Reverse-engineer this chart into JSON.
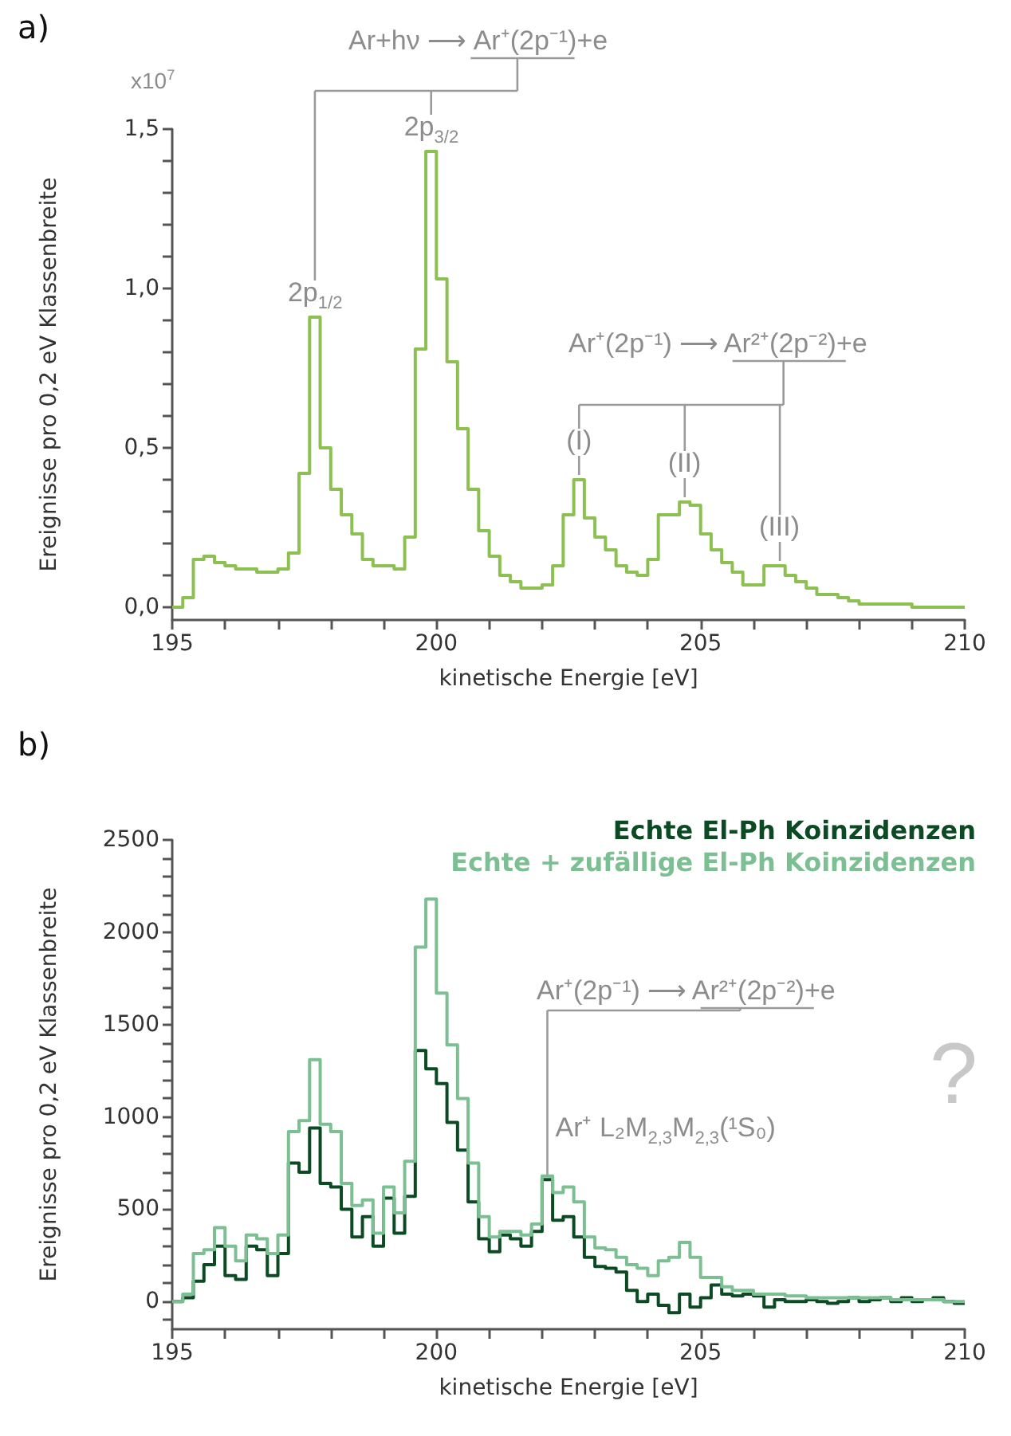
{
  "chart_data": [
    {
      "type": "histogram",
      "title": "a)",
      "xlabel": "kinetische Energie [eV]",
      "ylabel": "Ereignisse pro 0,2 eV Klassenbreite",
      "bins": [
        195,
        195.2,
        195.4,
        195.6,
        195.8,
        196,
        196.2,
        196.4,
        196.6,
        196.8,
        197,
        197.2,
        197.4,
        197.6,
        197.8,
        198,
        198.2,
        198.4,
        198.6,
        198.8,
        199,
        199.2,
        199.4,
        199.6,
        199.8,
        200,
        200.2,
        200.4,
        200.6,
        200.8,
        201,
        201.2,
        201.4,
        201.6,
        201.8,
        202,
        202.2,
        202.4,
        202.6,
        202.8,
        203,
        203.2,
        203.4,
        203.6,
        203.8,
        204,
        204.2,
        204.4,
        204.6,
        204.8,
        205,
        205.2,
        205.4,
        205.6,
        205.8,
        206,
        206.2,
        206.4,
        206.6,
        206.8,
        207,
        207.2,
        207.4,
        207.6,
        207.8,
        208,
        208.2,
        208.4,
        208.6,
        208.8,
        209,
        209.2,
        209.4,
        209.6,
        209.8,
        210
      ],
      "values": [
        0.0,
        0.03,
        0.15,
        0.16,
        0.14,
        0.13,
        0.12,
        0.12,
        0.11,
        0.11,
        0.12,
        0.17,
        0.42,
        0.91,
        0.5,
        0.37,
        0.29,
        0.23,
        0.15,
        0.13,
        0.13,
        0.12,
        0.22,
        0.81,
        1.43,
        1.03,
        0.77,
        0.56,
        0.37,
        0.24,
        0.16,
        0.1,
        0.08,
        0.06,
        0.06,
        0.07,
        0.13,
        0.29,
        0.4,
        0.28,
        0.22,
        0.18,
        0.13,
        0.11,
        0.1,
        0.15,
        0.29,
        0.29,
        0.33,
        0.32,
        0.23,
        0.18,
        0.14,
        0.11,
        0.07,
        0.07,
        0.13,
        0.13,
        0.1,
        0.08,
        0.06,
        0.04,
        0.04,
        0.03,
        0.02,
        0.01,
        0.01,
        0.01,
        0.01,
        0.01,
        0.0,
        0.0,
        0.0,
        0.0,
        0.0
      ],
      "color": "#8cc152",
      "xlim": [
        195,
        210
      ],
      "xticks": [
        195,
        {
          "value": 196,
          "label": null
        },
        {
          "value": 197,
          "label": null
        },
        {
          "value": 198,
          "label": null
        },
        {
          "value": 199,
          "label": null
        },
        200,
        {
          "value": 201,
          "label": null
        },
        {
          "value": 202,
          "label": null
        },
        {
          "value": 203,
          "label": null
        },
        {
          "value": 204,
          "label": null
        },
        205,
        {
          "value": 206,
          "label": null
        },
        {
          "value": 207,
          "label": null
        },
        {
          "value": 208,
          "label": null
        },
        {
          "value": 209,
          "label": null
        },
        210
      ],
      "ylim": [
        -0.04,
        1.5
      ],
      "yticks": [
        {
          "value": 0,
          "label": "0,0"
        },
        {
          "value": 0.1,
          "label": null
        },
        {
          "value": 0.2,
          "label": null
        },
        {
          "value": 0.3,
          "label": null
        },
        {
          "value": 0.4,
          "label": null
        },
        {
          "value": 0.5,
          "label": "0,5"
        },
        {
          "value": 0.6,
          "label": null
        },
        {
          "value": 0.7,
          "label": null
        },
        {
          "value": 0.8,
          "label": null
        },
        {
          "value": 0.9,
          "label": null
        },
        {
          "value": 1,
          "label": "1,0"
        },
        {
          "value": 1.1,
          "label": null
        },
        {
          "value": 1.2,
          "label": null
        },
        {
          "value": 1.3,
          "label": null
        },
        {
          "value": 1.4,
          "label": null
        },
        {
          "value": 1.5,
          "label": "1,5"
        }
      ],
      "annotations": [
        "Ar+hν ⟶ Ar⁺(2p⁻¹)+e",
        {
          "text": "2p$_{1/2}$",
          "x": 197.7,
          "y": 0.91
        },
        {
          "text": "2p$_{3/2}$",
          "x": 199.9,
          "y": 1.43
        },
        "Ar⁺(2p⁻¹) ⟶ Ar²⁺(2p⁻²)+e",
        {
          "text": "(I)",
          "x": 202.7,
          "y": 0.4
        },
        {
          "text": "(II)",
          "x": 204.7,
          "y": 0.33
        },
        {
          "text": "(III)",
          "x": 206.5,
          "y": 0.13
        },
        "x10$^{7}$"
      ]
    },
    {
      "type": "histogram",
      "title": "b)",
      "xlabel": "kinetische Energie [eV]",
      "ylabel": "Ereignisse pro 0,2 eV Klassenbreite",
      "bins": [
        195,
        195.2,
        195.4,
        195.6,
        195.8,
        196,
        196.2,
        196.4,
        196.6,
        196.8,
        197,
        197.2,
        197.4,
        197.6,
        197.8,
        198,
        198.2,
        198.4,
        198.6,
        198.8,
        199,
        199.2,
        199.4,
        199.6,
        199.8,
        200,
        200.2,
        200.4,
        200.6,
        200.8,
        201,
        201.2,
        201.4,
        201.6,
        201.8,
        202,
        202.2,
        202.4,
        202.6,
        202.8,
        203,
        203.2,
        203.4,
        203.6,
        203.8,
        204,
        204.2,
        204.4,
        204.6,
        204.8,
        205,
        205.2,
        205.4,
        205.6,
        205.8,
        206,
        206.2,
        206.4,
        206.6,
        206.8,
        207,
        207.2,
        207.4,
        207.6,
        207.8,
        208,
        208.2,
        208.4,
        208.6,
        208.8,
        209,
        209.2,
        209.4,
        209.6,
        209.8,
        210
      ],
      "series": [
        {
          "name": "Echte El-Ph Koinzidenzen",
          "color": "#0b4a22",
          "values": [
            0,
            20,
            110,
            200,
            300,
            140,
            120,
            300,
            280,
            140,
            260,
            750,
            700,
            940,
            640,
            620,
            500,
            350,
            460,
            300,
            560,
            370,
            570,
            1360,
            1260,
            1180,
            970,
            820,
            540,
            340,
            270,
            360,
            340,
            300,
            380,
            660,
            440,
            460,
            350,
            240,
            190,
            180,
            160,
            60,
            0,
            40,
            -20,
            -60,
            40,
            -30,
            20,
            90,
            40,
            30,
            40,
            30,
            -30,
            10,
            0,
            0,
            10,
            0,
            -10,
            0,
            20,
            0,
            10,
            20,
            0,
            20,
            0,
            10,
            20,
            0,
            -10
          ]
        },
        {
          "name": "Echte + zufällige El-Ph Koinzidenzen",
          "color": "#7cbf92",
          "values": [
            0,
            40,
            260,
            280,
            400,
            300,
            220,
            360,
            340,
            260,
            360,
            920,
            980,
            1310,
            960,
            920,
            640,
            520,
            550,
            370,
            620,
            480,
            760,
            1920,
            2180,
            1670,
            1390,
            1100,
            750,
            460,
            350,
            380,
            380,
            360,
            420,
            680,
            590,
            620,
            540,
            350,
            290,
            280,
            240,
            200,
            180,
            140,
            220,
            240,
            320,
            240,
            130,
            130,
            80,
            60,
            60,
            40,
            40,
            40,
            30,
            30,
            20,
            20,
            20,
            20,
            20,
            20,
            20,
            20,
            10,
            10,
            10,
            10,
            10,
            0,
            0
          ]
        }
      ],
      "legend": "top right",
      "xlim": [
        195,
        210
      ],
      "xticks": [
        195,
        {
          "value": 196,
          "label": null
        },
        {
          "value": 197,
          "label": null
        },
        {
          "value": 198,
          "label": null
        },
        {
          "value": 199,
          "label": null
        },
        200,
        {
          "value": 201,
          "label": null
        },
        {
          "value": 202,
          "label": null
        },
        {
          "value": 203,
          "label": null
        },
        {
          "value": 204,
          "label": null
        },
        205,
        {
          "value": 206,
          "label": null
        },
        {
          "value": 207,
          "label": null
        },
        {
          "value": 208,
          "label": null
        },
        {
          "value": 209,
          "label": null
        },
        210
      ],
      "ylim": [
        -150,
        2500
      ],
      "yticks": [
        {
          "value": -100,
          "label": null
        },
        0,
        {
          "value": 100,
          "label": null
        },
        {
          "value": 200,
          "label": null
        },
        {
          "value": 300,
          "label": null
        },
        {
          "value": 400,
          "label": null
        },
        500,
        {
          "value": 600,
          "label": null
        },
        {
          "value": 700,
          "label": null
        },
        {
          "value": 800,
          "label": null
        },
        {
          "value": 900,
          "label": null
        },
        1000,
        {
          "value": 1100,
          "label": null
        },
        {
          "value": 1200,
          "label": null
        },
        {
          "value": 1300,
          "label": null
        },
        {
          "value": 1400,
          "label": null
        },
        1500,
        {
          "value": 1600,
          "label": null
        },
        {
          "value": 1700,
          "label": null
        },
        {
          "value": 1800,
          "label": null
        },
        {
          "value": 1900,
          "label": null
        },
        2000,
        {
          "value": 2100,
          "label": null
        },
        {
          "value": 2200,
          "label": null
        },
        {
          "value": 2300,
          "label": null
        },
        {
          "value": 2400,
          "label": null
        },
        2500
      ],
      "annotations": [
        {
          "text": "Ar⁺(2p⁻¹) ⟶ Ar²⁺(2p⁻²)+e",
          "x": 202.1,
          "y": 660
        },
        "?",
        {
          "text": "Ar⁺ L₂M$_{2,3}$M$_{2,3}$(¹S₀)",
          "x": 202.1,
          "y": 660
        }
      ]
    }
  ]
}
